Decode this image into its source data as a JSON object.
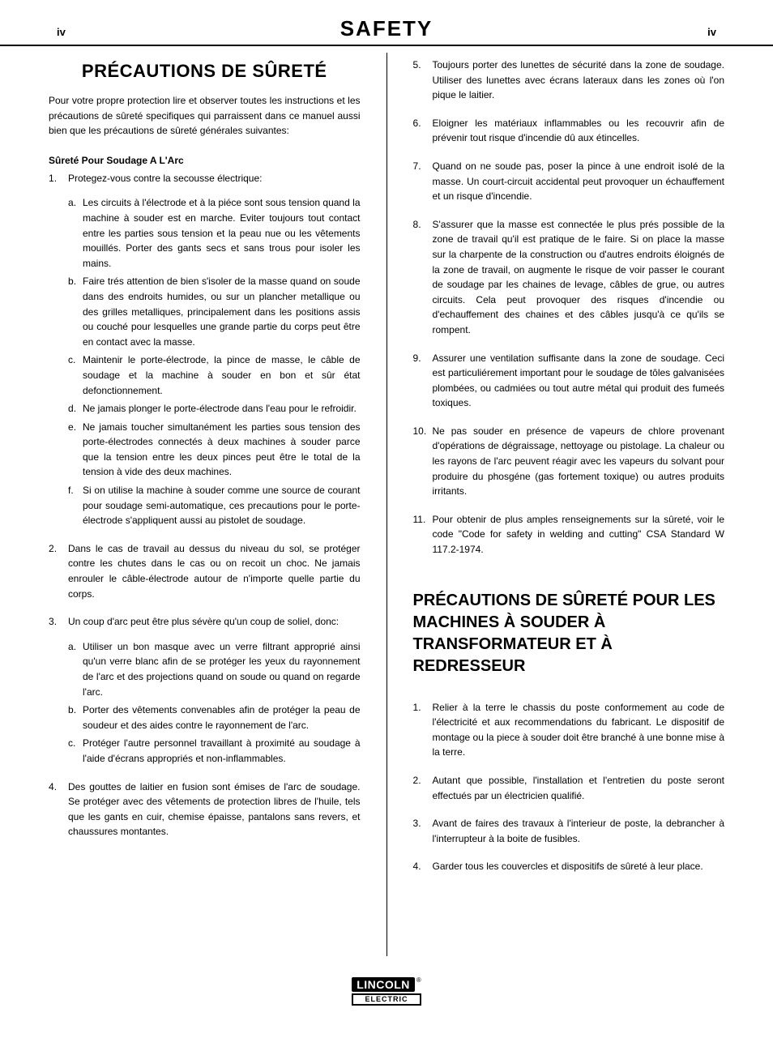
{
  "page": {
    "num_left": "iv",
    "num_right": "iv",
    "title": "SAFETY"
  },
  "left": {
    "title": "PRÉCAUTIONS DE SÛRETÉ",
    "intro": "Pour votre propre protection lire et observer toutes les instructions et les précautions de sûreté specifiques qui parraissent dans ce manuel aussi bien que les précautions de sûreté générales suivantes:",
    "subhead": "Sûreté Pour Soudage A L'Arc",
    "items": [
      {
        "text": "Protegez-vous contre la secousse électrique:",
        "sub": [
          "Les circuits à l'électrode et à la piéce sont sous tension quand la machine à souder est en marche. Eviter toujours tout contact entre les parties sous tension et la peau nue ou les vêtements mouillés. Porter des gants secs et sans trous pour isoler les mains.",
          "Faire trés attention de bien s'isoler de la masse quand on soude dans des endroits humides, ou sur un plancher metallique ou des grilles metalliques, principalement dans les positions assis ou couché pour lesquelles une grande partie du corps peut être en contact avec la masse.",
          "Maintenir le porte-électrode, la pince de masse, le câble de soudage et la machine à souder en bon et sûr état defonctionnement.",
          "Ne jamais plonger le porte-électrode dans l'eau pour le refroidir.",
          "Ne jamais toucher simultanément les parties sous tension des porte-électrodes connectés à deux machines à souder parce que la tension entre les deux pinces peut être le total de la tension à vide des deux machines.",
          "Si on utilise la machine à souder comme une source de courant pour soudage semi-automatique, ces precautions pour le porte-électrode s'appliquent aussi au pistolet de soudage."
        ]
      },
      {
        "text": "Dans le cas de travail au dessus du niveau du sol, se protéger contre les chutes dans le cas ou on recoit un choc. Ne jamais enrouler le câble-électrode autour de n'importe quelle partie du corps."
      },
      {
        "text": "Un coup d'arc peut être plus sévère qu'un coup de soliel, donc:",
        "sub": [
          "Utiliser un bon masque avec un verre filtrant approprié ainsi qu'un verre blanc afin de se protéger les yeux du rayonnement de l'arc et des projections quand on soude ou quand on regarde l'arc.",
          "Porter des vêtements convenables afin de protéger la peau de soudeur et des aides contre le rayonnement de l'arc.",
          "Protéger l'autre personnel travaillant à proximité au soudage à l'aide d'écrans appropriés et non-inflammables."
        ]
      },
      {
        "text": "Des gouttes de laitier en fusion sont émises de l'arc de soudage. Se protéger avec des vêtements de protection libres de l'huile, tels que les gants en cuir, chemise épaisse, pantalons sans revers, et chaussures montantes."
      }
    ]
  },
  "right": {
    "items": [
      {
        "text": "Toujours porter des lunettes de sécurité dans la zone de soudage. Utiliser des lunettes avec écrans lateraux dans les zones où l'on pique le laitier."
      },
      {
        "text": "Eloigner les matériaux inflammables ou les recouvrir afin de prévenir tout risque d'incendie dû aux étincelles."
      },
      {
        "text": "Quand on ne soude pas, poser la pince à une endroit isolé de la masse. Un court-circuit accidental peut provoquer un échauffement et un risque d'incendie."
      },
      {
        "text": "S'assurer que la masse est connectée le plus prés possible de la zone de travail qu'il est pratique de le faire. Si on place la masse sur la charpente de la construction ou d'autres endroits éloignés de la zone de travail, on augmente le risque de voir passer le courant de soudage par les chaines de levage, câbles de grue, ou autres circuits. Cela peut provoquer des risques d'incendie ou d'echauffement des chaines et des câbles jusqu'à ce qu'ils se rompent."
      },
      {
        "text": "Assurer une ventilation suffisante dans la zone de soudage. Ceci est particuliérement important pour le soudage de tôles galvanisées plombées, ou cadmiées ou tout autre métal qui produit des fumeés toxiques."
      },
      {
        "text": "Ne pas souder en présence de vapeurs de chlore provenant d'opérations de dégraissage, nettoyage ou pistolage. La chaleur ou les rayons de l'arc peuvent réagir avec les vapeurs du solvant pour produire du phosgéne (gas fortement toxique) ou autres produits irritants."
      },
      {
        "text": "Pour obtenir de plus amples renseignements sur la sûreté, voir le code \"Code for safety in welding and cutting\" CSA Standard W 117.2-1974."
      }
    ],
    "title2": "PRÉCAUTIONS DE SÛRETÉ POUR LES MACHINES À SOUDER À TRANSFORMATEUR ET À REDRESSEUR",
    "items2": [
      {
        "text": "Relier à la terre le chassis du poste conformement au code de l'électricité et aux recommendations du fabricant. Le dispositif de montage ou la piece à souder doit être branché à une bonne mise à la terre."
      },
      {
        "text": "Autant que possible, l'installation et l'entretien du poste seront effectués par un électricien qualifié."
      },
      {
        "text": "Avant de faires des travaux à l'interieur de poste, la debrancher à l'interrupteur à la boite de fusibles."
      },
      {
        "text": "Garder tous les couvercles et dispositifs de sûreté à leur place."
      }
    ]
  },
  "logo": {
    "main": "LINCOLN",
    "sub": "ELECTRIC"
  }
}
